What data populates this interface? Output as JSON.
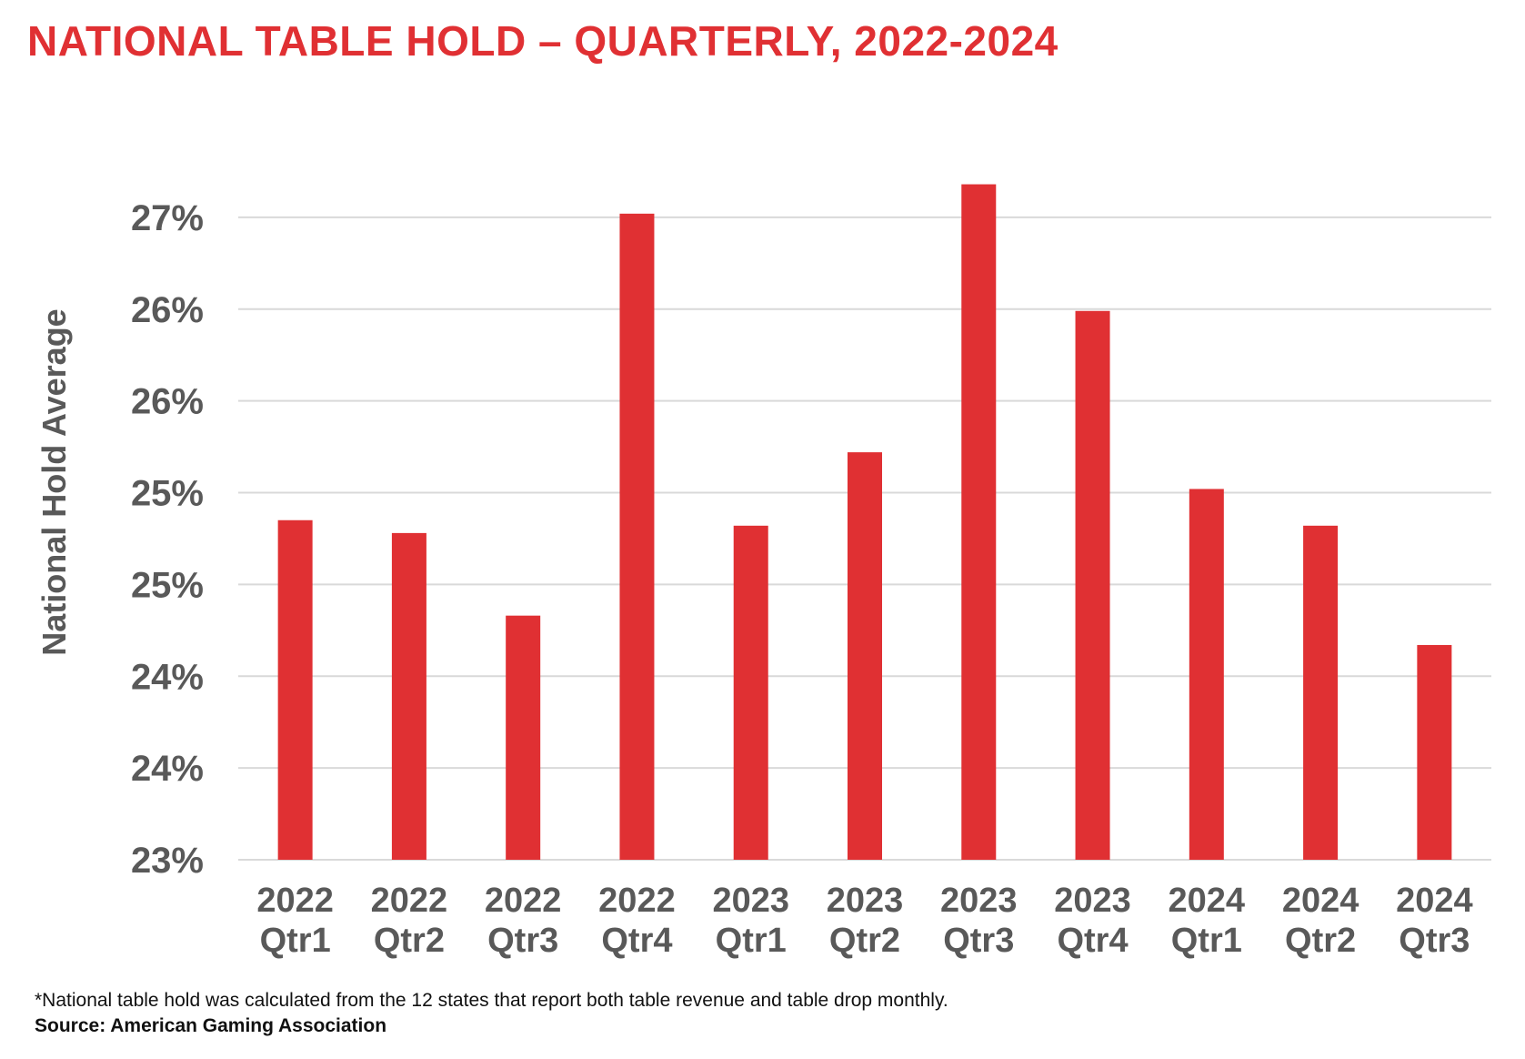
{
  "colors": {
    "title": "#e03033",
    "bar": "#e03033",
    "grid": "#d9d9d9",
    "text": "#595959"
  },
  "chart_data": {
    "type": "bar",
    "title": "NATIONAL TABLE HOLD – QUARTERLY, 2022-2024",
    "xlabel": "",
    "ylabel": "National Hold Average",
    "categories": [
      [
        "2022",
        "Qtr1"
      ],
      [
        "2022",
        "Qtr2"
      ],
      [
        "2022",
        "Qtr3"
      ],
      [
        "2022",
        "Qtr4"
      ],
      [
        "2023",
        "Qtr1"
      ],
      [
        "2023",
        "Qtr2"
      ],
      [
        "2023",
        "Qtr3"
      ],
      [
        "2023",
        "Qtr4"
      ],
      [
        "2024",
        "Qtr1"
      ],
      [
        "2024",
        "Qtr2"
      ],
      [
        "2024",
        "Qtr3"
      ]
    ],
    "values": [
      24.85,
      24.78,
      24.33,
      26.52,
      24.82,
      25.22,
      26.68,
      25.99,
      25.02,
      24.82,
      24.17
    ],
    "ylim": [
      23.0,
      27.0
    ],
    "yticks": [
      {
        "value": 23.0,
        "label": "23%"
      },
      {
        "value": 23.5,
        "label": "24%"
      },
      {
        "value": 24.0,
        "label": "24%"
      },
      {
        "value": 24.5,
        "label": "25%"
      },
      {
        "value": 25.0,
        "label": "25%"
      },
      {
        "value": 25.5,
        "label": "26%"
      },
      {
        "value": 26.0,
        "label": "26%"
      },
      {
        "value": 26.5,
        "label": "27%"
      }
    ],
    "grid": true,
    "legend": "none"
  },
  "footnote": "*National table hold was calculated from the 12 states that report both table revenue and table drop monthly.",
  "source": "Source: American Gaming Association"
}
